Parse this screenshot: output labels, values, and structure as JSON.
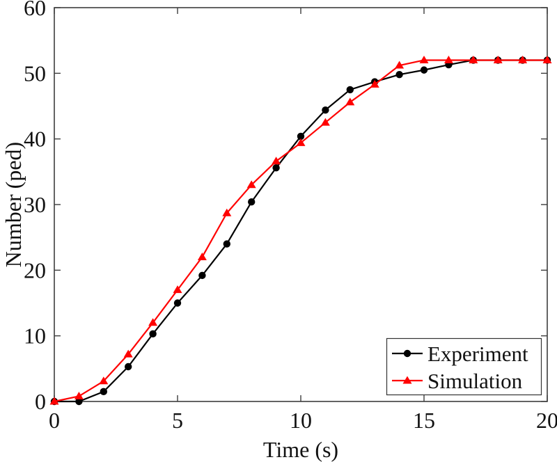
{
  "chart_data": {
    "type": "line",
    "title": "",
    "xlabel": "Time (s)",
    "ylabel": "Number (ped)",
    "xlim": [
      0,
      20
    ],
    "ylim": [
      0,
      60
    ],
    "x_ticks": [
      0,
      5,
      10,
      15,
      20
    ],
    "y_ticks": [
      0,
      10,
      20,
      30,
      40,
      50,
      60
    ],
    "grid": false,
    "legend_position": "lower right",
    "x": [
      0,
      1,
      2,
      3,
      4,
      5,
      6,
      7,
      8,
      9,
      10,
      11,
      12,
      13,
      14,
      15,
      16,
      17,
      18,
      19,
      20
    ],
    "series": [
      {
        "name": "Experiment",
        "color": "#000000",
        "marker": "circle",
        "values": [
          0,
          0,
          1.5,
          5.3,
          10.3,
          15,
          19.2,
          24,
          30.4,
          35.6,
          40.4,
          44.4,
          47.5,
          48.7,
          49.8,
          50.5,
          51.3,
          52,
          52,
          52,
          52
        ]
      },
      {
        "name": "Simulation",
        "color": "#ff0000",
        "marker": "triangle",
        "values": [
          0,
          0.8,
          3.1,
          7.2,
          12,
          17,
          22,
          28.7,
          33,
          36.6,
          39.4,
          42.5,
          45.6,
          48.3,
          51.2,
          52,
          52,
          52,
          52,
          52,
          52
        ]
      }
    ],
    "plateau_value": 52,
    "axis_color": "#3d3d3d"
  }
}
